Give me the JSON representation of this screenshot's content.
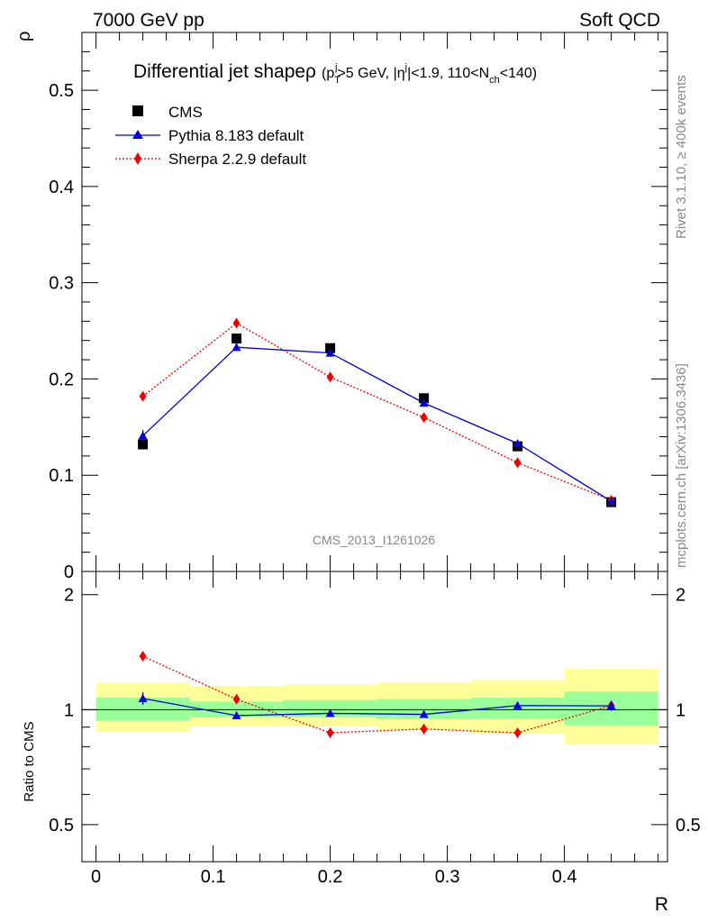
{
  "header": {
    "energy": "7000 GeV pp",
    "category": "Soft QCD"
  },
  "side_labels": {
    "rivet": "Rivet 3.1.10, ≥ 400k events",
    "mcplots": "mcplots.cern.ch [arXiv:1306.3436]"
  },
  "colors": {
    "cms": "#000000",
    "pythia": "#0000dd",
    "sherpa": "#ee0000",
    "band_inner": "#99ff99",
    "band_outer": "#ffff99"
  },
  "chart_data": [
    {
      "type": "line",
      "panel": "main",
      "title_main": "Differential jet shapeρ",
      "title_cuts": "(p_T^j>5 GeV, |η^j|<1.9, 110<N_ch<140)",
      "title_parts": [
        "(p",
        "T",
        "j",
        ">5 GeV, |η",
        "j",
        "|<1.9, 110<N",
        "ch",
        "<140)"
      ],
      "ylabel": "ρ",
      "xlabel": "R",
      "watermark": "CMS_2013_I1261026",
      "xlim": [
        -0.012,
        0.488
      ],
      "ylim": [
        0,
        0.56
      ],
      "yticks": [
        0,
        0.1,
        0.2,
        0.3,
        0.4,
        0.5
      ],
      "ytick_labels": [
        "0",
        "0.1",
        "0.2",
        "0.3",
        "0.4",
        "0.5"
      ],
      "x": [
        0.04,
        0.12,
        0.2,
        0.28,
        0.36,
        0.44
      ],
      "bin_edges": [
        0.0,
        0.08,
        0.16,
        0.24,
        0.32,
        0.4,
        0.48
      ],
      "legend_position": "top-left",
      "series": [
        {
          "name": "CMS",
          "style": "square",
          "values": [
            0.132,
            0.242,
            0.232,
            0.18,
            0.13,
            0.072
          ],
          "errors": [
            0,
            0,
            0,
            0,
            0,
            0
          ]
        },
        {
          "name": "Pythia 8.183 default",
          "style": "triangle-solid",
          "values": [
            0.141,
            0.233,
            0.227,
            0.175,
            0.133,
            0.073
          ],
          "errors": [
            0.006,
            0.004,
            0.004,
            0.003,
            0.003,
            0.002
          ]
        },
        {
          "name": "Sherpa 2.2.9 default",
          "style": "diamond-dotted",
          "values": [
            0.182,
            0.258,
            0.202,
            0.16,
            0.113,
            0.074
          ],
          "errors": [
            0.004,
            0.004,
            0.003,
            0.003,
            0.002,
            0.002
          ]
        }
      ]
    },
    {
      "type": "line",
      "panel": "ratio",
      "ylabel": "Ratio to CMS",
      "xlabel": "R",
      "xlim": [
        -0.012,
        0.488
      ],
      "ylim": [
        0.4,
        2.3
      ],
      "log_y": true,
      "yticks": [
        0.5,
        1,
        2
      ],
      "ytick_labels": [
        "0.5",
        "1",
        "2"
      ],
      "xticks": [
        0,
        0.1,
        0.2,
        0.3,
        0.4
      ],
      "xtick_labels": [
        "0",
        "0.1",
        "0.2",
        "0.3",
        "0.4"
      ],
      "x": [
        0.04,
        0.12,
        0.2,
        0.28,
        0.36,
        0.44
      ],
      "bands": {
        "bin_edges": [
          0.0,
          0.08,
          0.16,
          0.24,
          0.32,
          0.4,
          0.48
        ],
        "inner_low": [
          0.935,
          0.955,
          0.955,
          0.945,
          0.945,
          0.91
        ],
        "inner_high": [
          1.075,
          1.05,
          1.06,
          1.065,
          1.075,
          1.115
        ],
        "outer_low": [
          0.875,
          0.905,
          0.905,
          0.885,
          0.87,
          0.815
        ],
        "outer_high": [
          1.175,
          1.155,
          1.165,
          1.18,
          1.195,
          1.28
        ]
      },
      "series": [
        {
          "name": "Pythia 8.183 default",
          "values": [
            1.07,
            0.965,
            0.978,
            0.972,
            1.025,
            1.023
          ],
          "errors": [
            0.04,
            0.015,
            0.015,
            0.015,
            0.02,
            0.03
          ]
        },
        {
          "name": "Sherpa 2.2.9 default",
          "values": [
            1.38,
            1.065,
            0.87,
            0.89,
            0.87,
            1.025
          ],
          "errors": [
            0.035,
            0.015,
            0.012,
            0.012,
            0.012,
            0.025
          ]
        }
      ]
    }
  ]
}
